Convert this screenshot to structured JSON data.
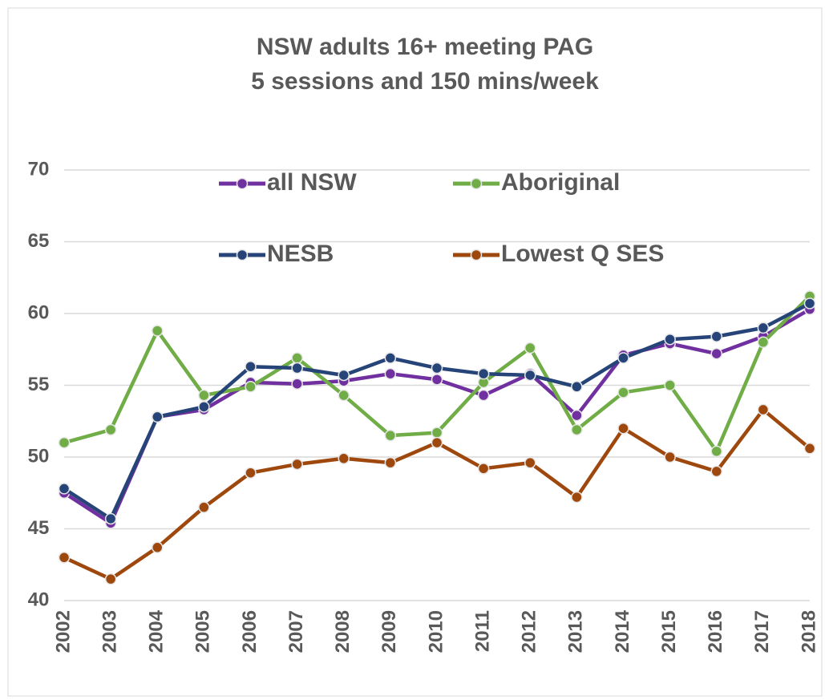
{
  "chart_data": {
    "type": "line",
    "title": "NSW adults 16+ meeting PAG",
    "subtitle": "5 sessions and 150 mins/week",
    "x": [
      "2002",
      "2003",
      "2004",
      "2005",
      "2006",
      "2007",
      "2008",
      "2009",
      "2010",
      "2011",
      "2012",
      "2013",
      "2014",
      "2015",
      "2016",
      "2017",
      "2018"
    ],
    "series": [
      {
        "name": "all NSW",
        "color": "#7030a0",
        "values": [
          47.5,
          45.4,
          52.8,
          53.3,
          55.2,
          55.1,
          55.3,
          55.8,
          55.4,
          54.3,
          55.8,
          52.9,
          57.1,
          57.9,
          57.2,
          58.4,
          60.3
        ]
      },
      {
        "name": "Aboriginal",
        "color": "#70ad47",
        "values": [
          51.0,
          51.9,
          58.8,
          54.3,
          54.9,
          56.9,
          54.3,
          51.5,
          51.7,
          55.2,
          57.6,
          51.9,
          54.5,
          55.0,
          50.4,
          58.0,
          61.2
        ]
      },
      {
        "name": "NESB",
        "color": "#264478",
        "values": [
          47.8,
          45.7,
          52.8,
          53.5,
          56.3,
          56.2,
          55.7,
          56.9,
          56.2,
          55.8,
          55.7,
          54.9,
          56.9,
          58.2,
          58.4,
          59.0,
          60.7
        ]
      },
      {
        "name": "Lowest Q SES",
        "color": "#9e480e",
        "values": [
          43.0,
          41.5,
          43.7,
          46.5,
          48.9,
          49.5,
          49.9,
          49.6,
          51.0,
          49.2,
          49.6,
          47.2,
          52.0,
          50.0,
          49.0,
          53.3,
          50.6
        ]
      }
    ],
    "ylim": [
      40,
      70
    ],
    "yticks": [
      40,
      45,
      50,
      55,
      60,
      65,
      70
    ],
    "grid": true,
    "legend": "top"
  }
}
